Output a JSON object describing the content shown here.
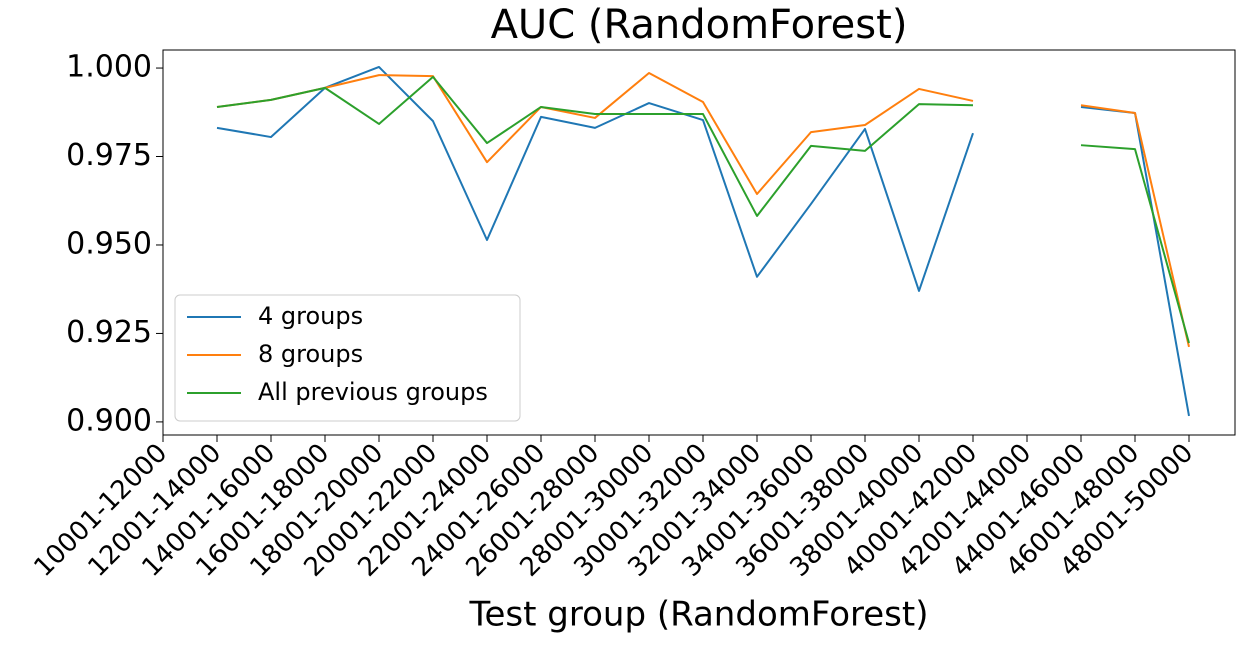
{
  "chart_data": {
    "type": "line",
    "title": "AUC (RandomForest)",
    "x_label": "Test group (RandomForest)",
    "categories": [
      "10001-12000",
      "12001-14000",
      "14001-16000",
      "16001-18000",
      "18001-20000",
      "20001-22000",
      "22001-24000",
      "24001-26000",
      "26001-28000",
      "28001-30000",
      "30001-32000",
      "32001-34000",
      "34001-36000",
      "36001-38000",
      "38001-40000",
      "40001-42000",
      "42001-44000",
      "44001-46000",
      "46001-48000",
      "48001-50000"
    ],
    "series": [
      {
        "name": "4 groups",
        "color": "#1f77b4",
        "values": [
          null,
          0.9831,
          0.9805,
          0.9944,
          1.0003,
          0.985,
          0.9514,
          0.9862,
          0.9831,
          0.9901,
          0.9853,
          0.941,
          0.9616,
          0.9828,
          0.937,
          0.9816,
          null,
          0.989,
          0.9873,
          0.9017
        ]
      },
      {
        "name": "8 groups",
        "color": "#ff7f0e",
        "values": [
          null,
          0.989,
          0.991,
          0.9944,
          0.998,
          0.9977,
          0.9734,
          0.989,
          0.9859,
          0.9986,
          0.9904,
          0.9644,
          0.9819,
          0.9839,
          0.9941,
          0.9907,
          null,
          0.9895,
          0.9873,
          0.9212
        ]
      },
      {
        "name": "All previous groups",
        "color": "#2ca02c",
        "values": [
          null,
          0.989,
          0.991,
          0.9944,
          0.9842,
          0.9975,
          0.9788,
          0.989,
          0.987,
          0.987,
          0.987,
          0.9582,
          0.978,
          0.9766,
          0.9898,
          0.9895,
          null,
          0.9782,
          0.9771,
          0.9223
        ]
      }
    ],
    "ylim": [
      0.8963,
      1.0051
    ],
    "yticks": [
      {
        "value": 0.9,
        "label": "0.900"
      },
      {
        "value": 0.925,
        "label": "0.925"
      },
      {
        "value": 0.95,
        "label": "0.950"
      },
      {
        "value": 0.975,
        "label": "0.975"
      },
      {
        "value": 1.0,
        "label": "1.000"
      }
    ],
    "legend": "lower left"
  }
}
